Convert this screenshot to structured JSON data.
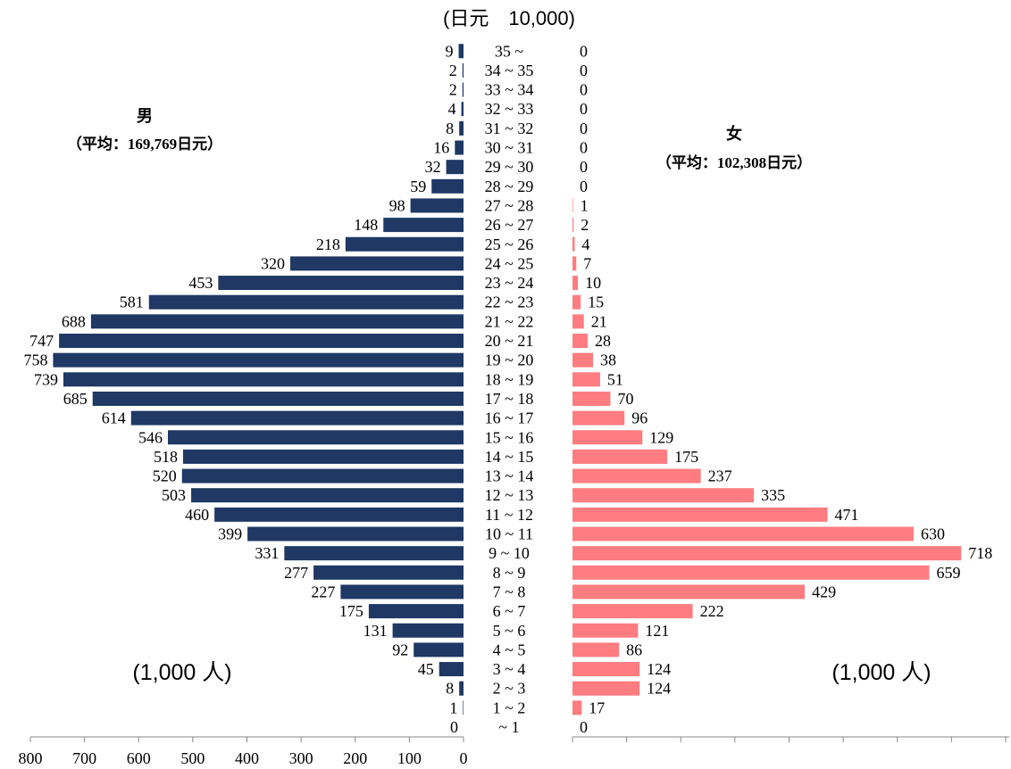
{
  "chart_data": {
    "type": "bar",
    "unit_label": "(日元　10,000)",
    "categories": [
      "~ 1",
      "1 ~ 2",
      "2 ~ 3",
      "3 ~ 4",
      "4 ~ 5",
      "5 ~ 6",
      "6 ~ 7",
      "7 ~ 8",
      "8 ~ 9",
      "9 ~ 10",
      "10 ~ 11",
      "11 ~ 12",
      "12 ~ 13",
      "13 ~ 14",
      "14 ~ 15",
      "15 ~ 16",
      "16 ~ 17",
      "17 ~ 18",
      "18 ~ 19",
      "19 ~ 20",
      "20 ~ 21",
      "21 ~ 22",
      "22 ~ 23",
      "23 ~ 24",
      "24 ~ 25",
      "25 ~ 26",
      "26 ~ 27",
      "27 ~ 28",
      "28 ~ 29",
      "29 ~ 30",
      "30 ~ 31",
      "31 ~ 32",
      "32 ~ 33",
      "33 ~ 34",
      "34 ~ 35",
      "35 ~"
    ],
    "series": [
      {
        "name": "男",
        "side": "left",
        "color": "#1f3864",
        "average_label": "（平均：169,769日元）",
        "count_unit_label": "(1,000 人)",
        "values": [
          0,
          1,
          8,
          45,
          92,
          131,
          175,
          227,
          277,
          331,
          399,
          460,
          503,
          520,
          518,
          546,
          614,
          685,
          739,
          758,
          747,
          688,
          581,
          453,
          320,
          218,
          148,
          98,
          59,
          32,
          16,
          8,
          4,
          2,
          2,
          9
        ]
      },
      {
        "name": "女",
        "side": "right",
        "color": "#ff7c80",
        "average_label": "（平均：102,308日元）",
        "count_unit_label": "(1,000 人)",
        "values": [
          0,
          17,
          124,
          124,
          86,
          121,
          222,
          429,
          659,
          718,
          630,
          471,
          335,
          237,
          175,
          129,
          96,
          70,
          51,
          38,
          28,
          21,
          15,
          10,
          7,
          4,
          2,
          1,
          0,
          0,
          0,
          0,
          0,
          0,
          0,
          0
        ]
      }
    ],
    "x_ticks": [
      "800",
      "700",
      "600",
      "500",
      "400",
      "300",
      "200",
      "100",
      "0"
    ],
    "xlim": [
      0,
      800
    ],
    "grid": false,
    "legend": "none"
  }
}
